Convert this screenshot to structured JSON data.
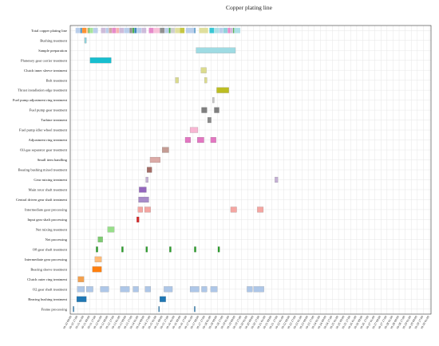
{
  "chart_data": {
    "type": "gantt",
    "title": "Copper plating line",
    "grid": true,
    "rows": [
      "Total copper plating line",
      "Bushing treatment",
      "Sample preparation",
      "Planetary gear carrier treatment",
      "Clutch inner sleeve treatment",
      "Bolt treatment",
      "Thrust installation edge treatment",
      "Fuel pump adjustment ring treatment",
      "Fuel pump gear treatment",
      "Turbine treatment",
      "Fuel pump idler wheel treatment",
      "Adjustment ring treatment",
      "Oil-gas separator gear treatment",
      "Small item handling",
      "Bearing bushing mixed treatment",
      "Gear mixing treatment",
      "Main rotor shaft treatment",
      "Central driven gear shaft treatment",
      "Intermediate gear processing",
      "Input gear shaft processing",
      "Net mixing treatment",
      "Net processing",
      "O8 gear shaft treatment",
      "Intermediate gear processing",
      "Bearing sleeve treatment",
      "Clutch outer ring treatment",
      "O2 gear shaft treatment",
      "Bearing bushing treatment",
      "Frame processing"
    ],
    "x_tick_labels": [
      "10-10 09:00",
      "10-10 17:00",
      "10-11 01:00",
      "10-11 09:00",
      "10-11 17:00",
      "10-12 01:00",
      "10-12 09:00",
      "10-12 17:00",
      "10-13 01:00",
      "10-13 09:00",
      "10-13 17:00",
      "10-14 01:00",
      "10-14 09:00",
      "10-14 17:00",
      "10-15 01:00",
      "10-15 09:00",
      "10-15 17:00",
      "10-16 01:00",
      "10-16 09:00",
      "10-16 17:00",
      "10-17 01:00",
      "10-17 09:00",
      "10-17 17:00",
      "10-18 01:00",
      "10-18 09:00",
      "10-18 17:00",
      "10-19 01:00",
      "10-19 09:00",
      "10-19 17:00",
      "10-20 01:00",
      "10-20 09:00",
      "10-20 17:00",
      "10-21 01:00",
      "10-21 09:00",
      "10-21 17:00",
      "10-22 01:00",
      "10-22 09:00",
      "10-22 17:00",
      "10-23 01:00",
      "10-23 09:00",
      "10-23 17:00",
      "10-24 01:00",
      "10-24 09:00",
      "10-24 17:00",
      "10-25 01:00",
      "10-25 09:00",
      "10-25 17:00",
      "10-26 01:00",
      "10-26 09:00",
      "10-26 17:00",
      "10-27 01:00",
      "10-27 09:00",
      "10-27 17:00",
      "10-28 01:00",
      "10-28 09:00",
      "10-28 17:00",
      "10-29 01:00",
      "10-29 09:00",
      "10-29 17:00",
      "10-30 01:00"
    ],
    "x_unit_hours_per_tick": 8,
    "tasks": [
      {
        "row": 1,
        "color": "#8fd3db",
        "segments": [
          [
            2.1,
            2.4
          ]
        ]
      },
      {
        "row": 2,
        "color": "#9fdbe3",
        "segments": [
          [
            20.5,
            27.0
          ]
        ]
      },
      {
        "row": 3,
        "color": "#17becf",
        "segments": [
          [
            3.0,
            6.5
          ]
        ]
      },
      {
        "row": 4,
        "color": "#dbdb8d",
        "segments": [
          [
            21.3,
            22.2
          ]
        ]
      },
      {
        "row": 5,
        "color": "#dbdb8d",
        "segments": [
          [
            17.1,
            17.6
          ],
          [
            21.9,
            22.3
          ]
        ]
      },
      {
        "row": 6,
        "color": "#bcbd22",
        "segments": [
          [
            23.9,
            25.9
          ]
        ]
      },
      {
        "row": 7,
        "color": "#c7c7c7",
        "segments": [
          [
            23.2,
            23.5
          ]
        ]
      },
      {
        "row": 8,
        "color": "#7f7f7f",
        "segments": [
          [
            21.4,
            22.3
          ],
          [
            23.5,
            24.3
          ]
        ]
      },
      {
        "row": 9,
        "color": "#8c8c8c",
        "segments": [
          [
            22.4,
            23.0
          ]
        ]
      },
      {
        "row": 10,
        "color": "#f7b6d2",
        "segments": [
          [
            19.5,
            20.8
          ]
        ]
      },
      {
        "row": 11,
        "color": "#e377c2",
        "segments": [
          [
            18.7,
            19.6
          ],
          [
            20.7,
            21.8
          ],
          [
            22.9,
            23.8
          ]
        ]
      },
      {
        "row": 12,
        "color": "#c49c94",
        "segments": [
          [
            14.9,
            16.0
          ]
        ]
      },
      {
        "row": 13,
        "color": "#dbaaa6",
        "segments": [
          [
            12.9,
            14.6
          ]
        ]
      },
      {
        "row": 14,
        "color": "#a36d66",
        "segments": [
          [
            12.4,
            13.2
          ]
        ]
      },
      {
        "row": 15,
        "color": "#c5b0d5",
        "segments": [
          [
            12.2,
            12.6
          ],
          [
            33.5,
            34.0
          ]
        ]
      },
      {
        "row": 16,
        "color": "#9467bd",
        "segments": [
          [
            11.1,
            12.3
          ]
        ]
      },
      {
        "row": 17,
        "color": "#a88cc9",
        "segments": [
          [
            11.0,
            12.7
          ]
        ]
      },
      {
        "row": 18,
        "color": "#f4a6a2",
        "segments": [
          [
            10.9,
            11.7
          ],
          [
            12.0,
            13.0
          ],
          [
            26.2,
            27.2
          ],
          [
            30.6,
            31.6
          ]
        ]
      },
      {
        "row": 19,
        "color": "#d62728",
        "segments": [
          [
            10.7,
            11.1
          ]
        ]
      },
      {
        "row": 20,
        "color": "#98df8a",
        "segments": [
          [
            5.9,
            7.0
          ]
        ]
      },
      {
        "row": 21,
        "color": "#7ecb72",
        "segments": [
          [
            4.3,
            5.1
          ]
        ]
      },
      {
        "row": 22,
        "color": "#2ca02c",
        "segments": [
          [
            4.0,
            4.3
          ],
          [
            8.2,
            8.5
          ],
          [
            12.2,
            12.5
          ],
          [
            16.1,
            16.4
          ],
          [
            20.2,
            20.5
          ],
          [
            24.1,
            24.4
          ]
        ]
      },
      {
        "row": 23,
        "color": "#ffbb78",
        "segments": [
          [
            3.8,
            4.9
          ]
        ]
      },
      {
        "row": 24,
        "color": "#ff7f0e",
        "segments": [
          [
            3.4,
            4.9
          ]
        ]
      },
      {
        "row": 25,
        "color": "#f2a04f",
        "segments": [
          [
            1.0,
            2.0
          ]
        ]
      },
      {
        "row": 26,
        "color": "#aec7e8",
        "segments": [
          [
            0.9,
            2.1
          ],
          [
            2.4,
            3.5
          ],
          [
            4.7,
            6.1
          ],
          [
            8.0,
            9.5
          ],
          [
            10.1,
            11.0
          ],
          [
            12.1,
            13.0
          ],
          [
            15.2,
            16.6
          ],
          [
            19.5,
            21.0
          ],
          [
            21.4,
            22.3
          ],
          [
            22.9,
            24.0
          ],
          [
            28.9,
            29.8
          ],
          [
            30.0,
            31.7
          ]
        ]
      },
      {
        "row": 27,
        "color": "#1f77b4",
        "segments": [
          [
            0.8,
            2.4
          ],
          [
            14.5,
            15.5
          ]
        ]
      },
      {
        "row": 28,
        "color": "#1f77b4",
        "segments": [
          [
            0.2,
            0.35
          ],
          [
            14.3,
            14.45
          ],
          [
            20.2,
            20.35
          ]
        ]
      }
    ],
    "total_row_segments": [
      {
        "color": "#aec7e8",
        "range": [
          0.6,
          1.4
        ]
      },
      {
        "color": "#1f77b4",
        "range": [
          1.4,
          1.7
        ]
      },
      {
        "color": "#ff7f0e",
        "range": [
          1.7,
          2.4
        ]
      },
      {
        "color": "#ffbb78",
        "range": [
          2.4,
          2.7
        ]
      },
      {
        "color": "#2ca02c",
        "range": [
          2.7,
          2.9
        ]
      },
      {
        "color": "#98df8a",
        "range": [
          2.9,
          3.5
        ]
      },
      {
        "color": "#aec7e8",
        "range": [
          3.5,
          4.3
        ]
      },
      {
        "color": "#c5b0d5",
        "range": [
          4.8,
          5.6
        ]
      },
      {
        "color": "#aec7e8",
        "range": [
          5.6,
          6.1
        ]
      },
      {
        "color": "#c49c94",
        "range": [
          6.1,
          6.6
        ]
      },
      {
        "color": "#e377c2",
        "range": [
          6.6,
          7.3
        ]
      },
      {
        "color": "#f4a6a2",
        "range": [
          7.3,
          7.8
        ]
      },
      {
        "color": "#c5b0d5",
        "range": [
          7.8,
          8.6
        ]
      },
      {
        "color": "#aec7e8",
        "range": [
          8.6,
          9.5
        ]
      },
      {
        "color": "#7f7f7f",
        "range": [
          9.5,
          10.0
        ]
      },
      {
        "color": "#2ca02c",
        "range": [
          10.0,
          10.3
        ]
      },
      {
        "color": "#1f77b4",
        "range": [
          10.3,
          10.7
        ]
      },
      {
        "color": "#aec7e8",
        "range": [
          10.7,
          11.5
        ]
      },
      {
        "color": "#c5b0d5",
        "range": [
          11.5,
          12.3
        ]
      },
      {
        "color": "#e377c2",
        "range": [
          12.7,
          13.5
        ]
      },
      {
        "color": "#f7b6d2",
        "range": [
          13.5,
          14.5
        ]
      },
      {
        "color": "#7f7f7f",
        "range": [
          14.5,
          15.3
        ]
      },
      {
        "color": "#aec7e8",
        "range": [
          15.3,
          16.0
        ]
      },
      {
        "color": "#2ca02c",
        "range": [
          16.0,
          16.3
        ]
      },
      {
        "color": "#c7c7c7",
        "range": [
          16.3,
          17.0
        ]
      },
      {
        "color": "#dbdb8d",
        "range": [
          17.0,
          17.8
        ]
      },
      {
        "color": "#bcbd22",
        "range": [
          17.8,
          18.6
        ]
      },
      {
        "color": "#aec7e8",
        "range": [
          18.8,
          20.4
        ]
      },
      {
        "color": "#1f77b4",
        "range": [
          20.2,
          20.4
        ]
      },
      {
        "color": "#dbdb8d",
        "range": [
          21.0,
          22.5
        ]
      },
      {
        "color": "#17becf",
        "range": [
          22.7,
          23.5
        ]
      },
      {
        "color": "#9fdbe3",
        "range": [
          23.5,
          24.3
        ]
      },
      {
        "color": "#aec7e8",
        "range": [
          24.3,
          25.0
        ]
      },
      {
        "color": "#7ecbd6",
        "range": [
          25.0,
          25.7
        ]
      },
      {
        "color": "#e377c2",
        "range": [
          25.7,
          26.2
        ]
      },
      {
        "color": "#c5b0d5",
        "range": [
          26.2,
          26.6
        ]
      },
      {
        "color": "#2ca02c",
        "range": [
          26.6,
          26.8
        ]
      },
      {
        "color": "#9fdbe3",
        "range": [
          26.8,
          27.8
        ]
      }
    ]
  }
}
